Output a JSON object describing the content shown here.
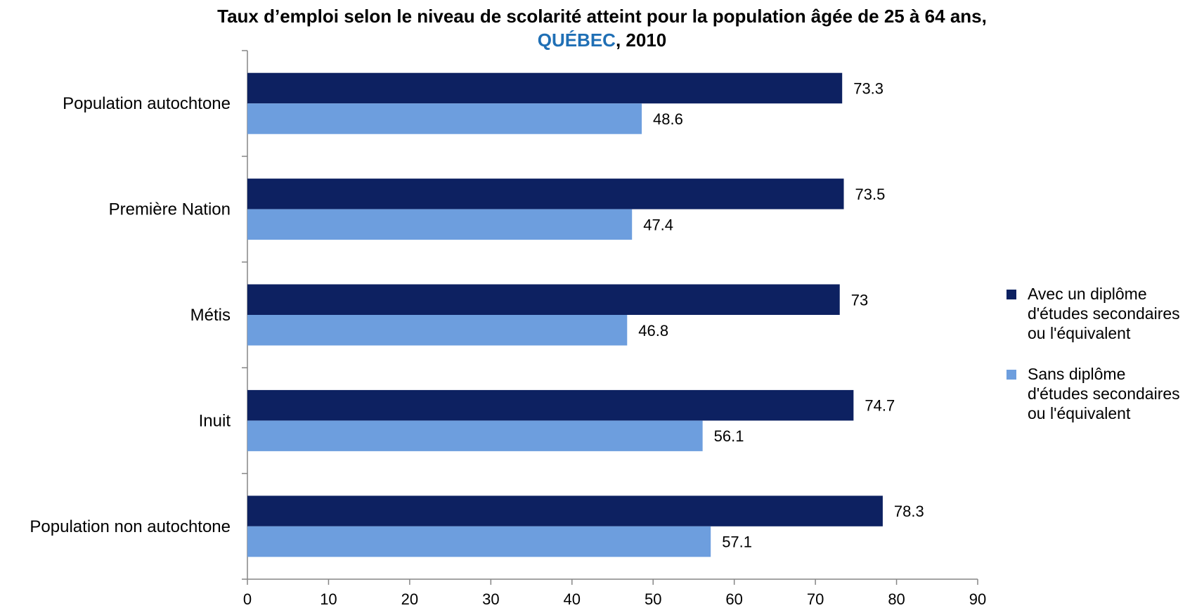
{
  "title": {
    "line1": "Taux d’emploi selon le niveau de scolarité atteint pour la population âgée de 25 à 64 ans,",
    "highlight": "QUÉBEC",
    "suffix": ", 2010"
  },
  "colors": {
    "series1": "#0d2161",
    "series2": "#6d9ede",
    "highlight": "#1f6fb5"
  },
  "chart_data": {
    "type": "bar",
    "orientation": "horizontal",
    "categories": [
      "Population autochtone",
      "Première Nation",
      "Métis",
      "Inuit",
      "Population non autochtone"
    ],
    "series": [
      {
        "name": "Avec un diplôme d'études secondaires ou l'équivalent",
        "values": [
          73.3,
          73.5,
          73,
          74.7,
          78.3
        ]
      },
      {
        "name": "Sans diplôme d'études secondaires ou l'équivalent",
        "values": [
          48.6,
          47.4,
          46.8,
          56.1,
          57.1
        ]
      }
    ],
    "value_labels": [
      [
        "73.3",
        "73.5",
        "73",
        "74.7",
        "78.3"
      ],
      [
        "48.6",
        "47.4",
        "46.8",
        "56.1",
        "57.1"
      ]
    ],
    "xlim": [
      0,
      90
    ],
    "xticks": [
      0,
      10,
      20,
      30,
      40,
      50,
      60,
      70,
      80,
      90
    ],
    "grid": false,
    "legend_position": "right"
  },
  "legend": [
    {
      "lines": [
        "Avec un diplôme",
        "d'études secondaires",
        "ou l'équivalent"
      ]
    },
    {
      "lines": [
        "Sans diplôme",
        "d'études secondaires",
        "ou l'équivalent"
      ]
    }
  ]
}
